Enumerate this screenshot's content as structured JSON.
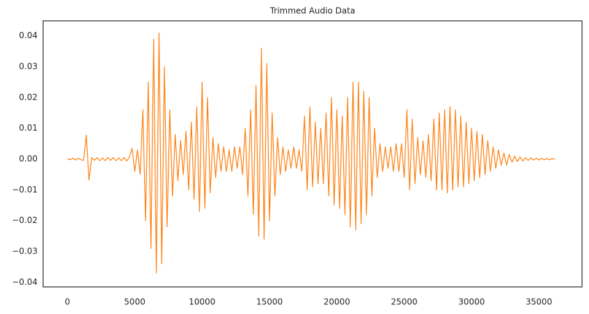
{
  "chart_data": {
    "type": "line",
    "title": "Trimmed Audio Data",
    "x": [
      0,
      200,
      400,
      600,
      800,
      1000,
      1200,
      1400,
      1600,
      1800,
      2000,
      2200,
      2400,
      2600,
      2800,
      3000,
      3200,
      3400,
      3600,
      3800,
      4000,
      4200,
      4400,
      4600,
      4800,
      5000,
      5200,
      5400,
      5600,
      5800,
      6000,
      6200,
      6400,
      6600,
      6800,
      7000,
      7200,
      7400,
      7600,
      7800,
      8000,
      8200,
      8400,
      8600,
      8800,
      9000,
      9200,
      9400,
      9600,
      9800,
      10000,
      10200,
      10400,
      10600,
      10800,
      11000,
      11200,
      11400,
      11600,
      11800,
      12000,
      12200,
      12400,
      12600,
      12800,
      13000,
      13200,
      13400,
      13600,
      13800,
      14000,
      14200,
      14400,
      14600,
      14800,
      15000,
      15200,
      15400,
      15600,
      15800,
      16000,
      16200,
      16400,
      16600,
      16800,
      17000,
      17200,
      17400,
      17600,
      17800,
      18000,
      18200,
      18400,
      18600,
      18800,
      19000,
      19200,
      19400,
      19600,
      19800,
      20000,
      20200,
      20400,
      20600,
      20800,
      21000,
      21200,
      21400,
      21600,
      21800,
      22000,
      22200,
      22400,
      22600,
      22800,
      23000,
      23200,
      23400,
      23600,
      23800,
      24000,
      24200,
      24400,
      24600,
      24800,
      25000,
      25200,
      25400,
      25600,
      25800,
      26000,
      26200,
      26400,
      26600,
      26800,
      27000,
      27200,
      27400,
      27600,
      27800,
      28000,
      28200,
      28400,
      28600,
      28800,
      29000,
      29200,
      29400,
      29600,
      29800,
      30000,
      30200,
      30400,
      30600,
      30800,
      31000,
      31200,
      31400,
      31600,
      31800,
      32000,
      32200,
      32400,
      32600,
      32800,
      33000,
      33200,
      33400,
      33600,
      33800,
      34000,
      34200,
      34400,
      34600,
      34800,
      35000,
      35200,
      35400,
      35600,
      35800,
      36000,
      36200
    ],
    "values": [
      0.0002,
      -0.0002,
      0.0003,
      -0.0003,
      0.0003,
      -0.0002,
      -0.0004,
      0.0078,
      -0.0068,
      0.0005,
      -0.0004,
      0.0005,
      -0.0005,
      0.0004,
      -0.0005,
      0.0005,
      -0.0004,
      0.0005,
      -0.0005,
      0.0004,
      -0.0005,
      0.0005,
      -0.0006,
      0.0006,
      0.0035,
      -0.004,
      0.003,
      -0.005,
      0.016,
      -0.02,
      0.025,
      -0.029,
      0.039,
      -0.037,
      0.041,
      -0.034,
      0.03,
      -0.022,
      0.016,
      -0.012,
      0.008,
      -0.007,
      0.006,
      -0.005,
      0.009,
      -0.01,
      0.012,
      -0.013,
      0.017,
      -0.017,
      0.025,
      -0.016,
      0.02,
      -0.011,
      0.007,
      -0.006,
      0.005,
      -0.004,
      0.004,
      -0.004,
      0.003,
      -0.004,
      0.004,
      -0.003,
      0.004,
      -0.005,
      0.01,
      -0.012,
      0.016,
      -0.018,
      0.024,
      -0.025,
      0.036,
      -0.026,
      0.031,
      -0.02,
      0.015,
      -0.012,
      0.007,
      -0.005,
      0.004,
      -0.004,
      0.003,
      -0.003,
      0.004,
      -0.003,
      0.003,
      -0.004,
      0.014,
      -0.01,
      0.017,
      -0.009,
      0.012,
      -0.008,
      0.01,
      -0.008,
      0.015,
      -0.012,
      0.02,
      -0.015,
      0.016,
      -0.016,
      0.014,
      -0.018,
      0.02,
      -0.022,
      0.025,
      -0.023,
      0.025,
      -0.021,
      0.022,
      -0.018,
      0.02,
      -0.012,
      0.01,
      -0.006,
      0.005,
      -0.004,
      0.004,
      -0.003,
      0.004,
      -0.004,
      0.005,
      -0.004,
      0.005,
      -0.006,
      0.016,
      -0.01,
      0.013,
      -0.008,
      0.007,
      -0.005,
      0.006,
      -0.006,
      0.008,
      -0.007,
      0.013,
      -0.01,
      0.015,
      -0.01,
      0.016,
      -0.011,
      0.017,
      -0.01,
      0.016,
      -0.009,
      0.014,
      -0.009,
      0.012,
      -0.008,
      0.01,
      -0.007,
      0.009,
      -0.006,
      0.008,
      -0.005,
      0.006,
      -0.004,
      0.004,
      -0.003,
      0.003,
      -0.002,
      0.002,
      -0.002,
      0.0015,
      -0.001,
      0.001,
      -0.0008,
      0.0007,
      -0.0006,
      0.0005,
      -0.0004,
      0.0004,
      -0.0003,
      0.0003,
      -0.0003,
      0.0003,
      -0.0002,
      0.0002,
      -0.0002,
      0.0002,
      -0.0001
    ],
    "color": "#ff7f0e",
    "xlim": [
      -1800,
      38200
    ],
    "xticks": [
      0,
      5000,
      10000,
      15000,
      20000,
      25000,
      30000,
      35000
    ],
    "ylim": [
      -0.0415,
      0.0449
    ],
    "yticks": [
      {
        "value": -0.04,
        "label": "−0.04"
      },
      {
        "value": -0.03,
        "label": "−0.03"
      },
      {
        "value": -0.02,
        "label": "−0.02"
      },
      {
        "value": -0.01,
        "label": "−0.01"
      },
      {
        "value": 0,
        "label": "0.00"
      },
      {
        "value": 0.01,
        "label": "0.01"
      },
      {
        "value": 0.02,
        "label": "0.02"
      },
      {
        "value": 0.03,
        "label": "0.03"
      },
      {
        "value": 0.04,
        "label": "0.04"
      }
    ],
    "grid": false
  }
}
